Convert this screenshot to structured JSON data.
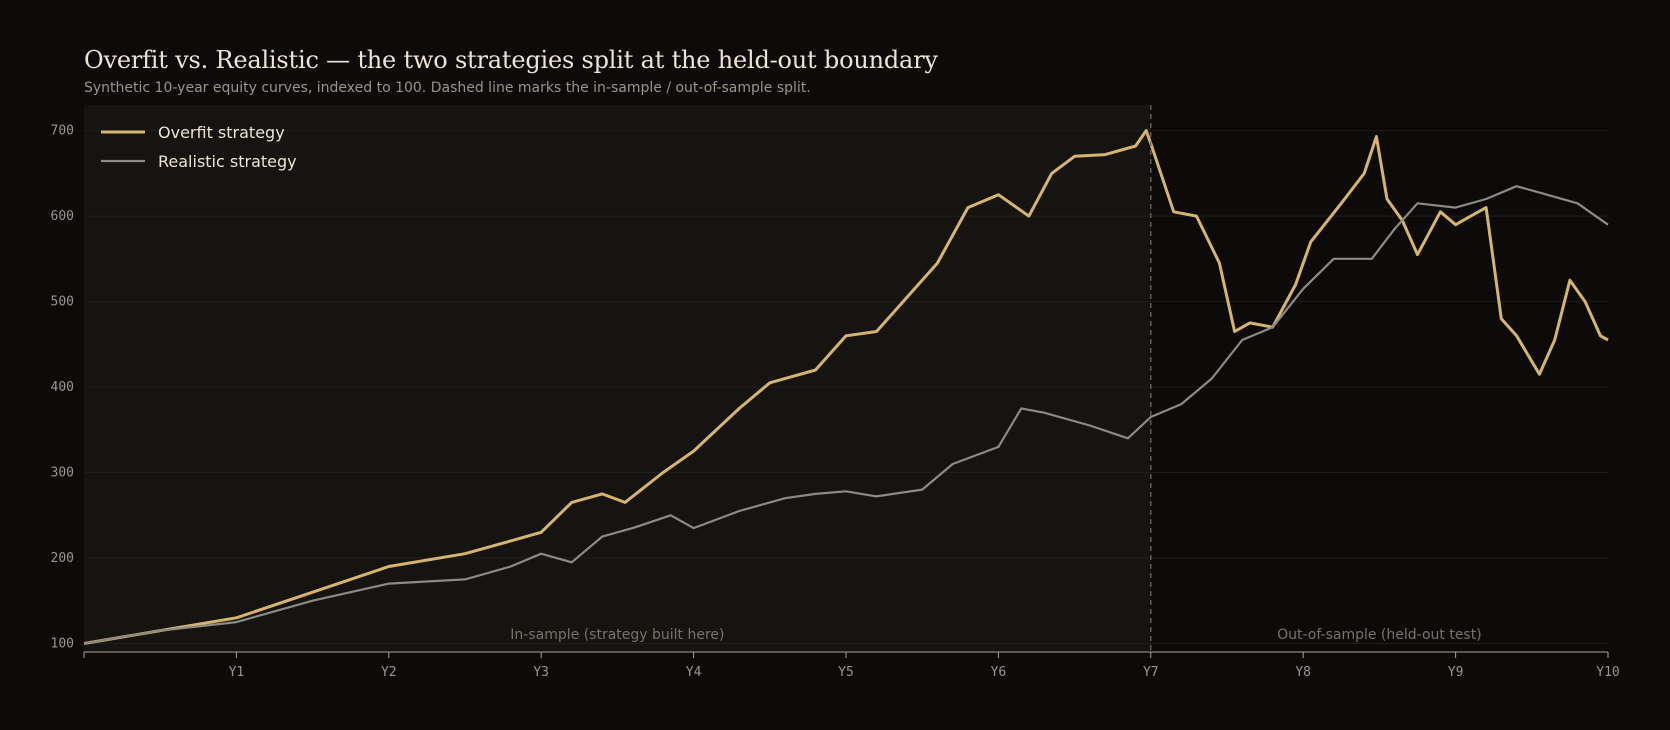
{
  "chart_data": {
    "type": "line",
    "title": "Overfit vs. Realistic — the two strategies split at the held-out boundary",
    "subtitle": "Synthetic 10-year equity curves, indexed to 100. Dashed line marks the in-sample / out-of-sample split.",
    "xlabel": "",
    "ylabel": "",
    "x_ticks": [
      "Y1",
      "Y2",
      "Y3",
      "Y4",
      "Y5",
      "Y6",
      "Y7",
      "Y8",
      "Y9",
      "Y10"
    ],
    "xlim": [
      0,
      10
    ],
    "ylim": [
      90,
      730
    ],
    "y_ticks": [
      100,
      200,
      300,
      400,
      500,
      600,
      700
    ],
    "grid": "horizontal",
    "legend_position": "top-left",
    "split_year": 7,
    "regions": [
      {
        "label": "In-sample (strategy built here)"
      },
      {
        "label": "Out-of-sample (held-out test)"
      }
    ],
    "series": [
      {
        "name": "Overfit strategy",
        "color": "#d7b46e",
        "x": [
          0,
          0.5,
          1,
          1.5,
          2,
          2.5,
          2.7,
          3,
          3.2,
          3.4,
          3.55,
          3.8,
          4,
          4.3,
          4.5,
          4.8,
          5,
          5.2,
          5.4,
          5.6,
          5.8,
          6,
          6.2,
          6.35,
          6.5,
          6.7,
          6.9,
          6.97,
          7,
          7.15,
          7.3,
          7.45,
          7.55,
          7.65,
          7.8,
          7.95,
          8.05,
          8.25,
          8.4,
          8.48,
          8.55,
          8.65,
          8.75,
          8.9,
          9,
          9.1,
          9.2,
          9.3,
          9.4,
          9.55,
          9.65,
          9.75,
          9.85,
          9.95,
          10
        ],
        "y": [
          100,
          115,
          130,
          160,
          190,
          205,
          215,
          230,
          265,
          275,
          265,
          300,
          325,
          375,
          405,
          420,
          460,
          465,
          505,
          545,
          610,
          625,
          600,
          650,
          670,
          672,
          682,
          700,
          685,
          605,
          600,
          545,
          465,
          475,
          470,
          520,
          570,
          615,
          650,
          693,
          620,
          595,
          555,
          605,
          590,
          600,
          610,
          480,
          460,
          415,
          455,
          525,
          500,
          460,
          455
        ]
      },
      {
        "name": "Realistic strategy",
        "color": "#8c8a84",
        "x": [
          0,
          0.5,
          1,
          1.5,
          2,
          2.5,
          2.8,
          3,
          3.2,
          3.4,
          3.6,
          3.85,
          4,
          4.3,
          4.6,
          4.8,
          5,
          5.2,
          5.5,
          5.7,
          6,
          6.15,
          6.3,
          6.6,
          6.85,
          7,
          7.2,
          7.4,
          7.6,
          7.8,
          8,
          8.2,
          8.45,
          8.6,
          8.75,
          9,
          9.2,
          9.4,
          9.6,
          9.8,
          10
        ],
        "y": [
          100,
          115,
          125,
          150,
          170,
          175,
          190,
          205,
          195,
          225,
          235,
          250,
          235,
          255,
          270,
          275,
          278,
          272,
          280,
          310,
          330,
          375,
          370,
          355,
          340,
          365,
          380,
          410,
          455,
          470,
          515,
          550,
          550,
          585,
          615,
          610,
          620,
          635,
          625,
          615,
          590
        ]
      }
    ]
  }
}
